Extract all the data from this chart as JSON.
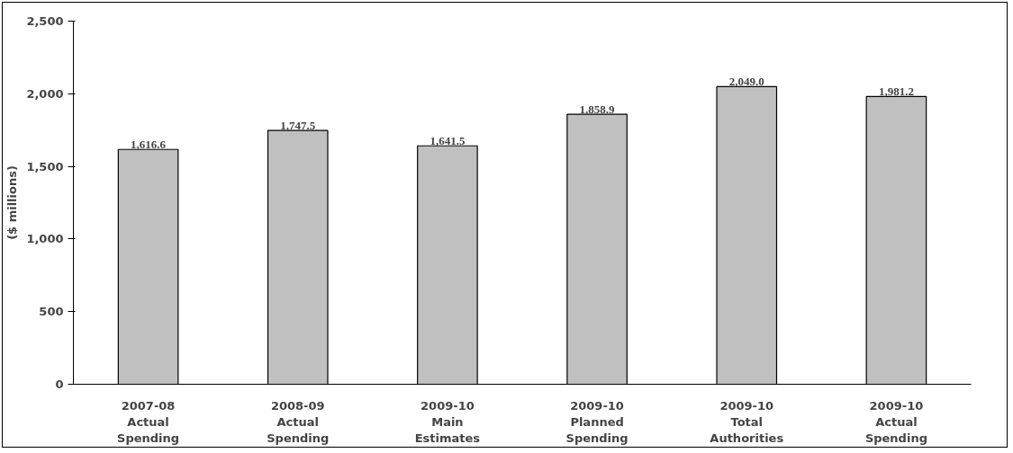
{
  "chart_data": {
    "type": "bar",
    "ylabel": "($ millions)",
    "categories": [
      "2007-08\nActual\nSpending",
      "2008-09\nActual\nSpending",
      "2009-10\nMain\nEstimates",
      "2009-10\nPlanned\nSpending",
      "2009-10\nTotal\nAuthorities",
      "2009-10\nActual\nSpending"
    ],
    "values": [
      1616.6,
      1747.5,
      1641.5,
      1858.9,
      2049.0,
      1981.2
    ],
    "value_labels": [
      "1,616.6",
      "1,747.5",
      "1,641.5",
      "1,858.9",
      "2,049.0",
      "1,981.2"
    ],
    "color": "#c0c0c0",
    "ylim": [
      0,
      2500
    ],
    "yticks": [
      0,
      500,
      {
        "value": 1000,
        "label": "1,000"
      },
      {
        "value": 1500,
        "label": "1,500"
      },
      {
        "value": 2000,
        "label": "2,000"
      },
      {
        "value": 2500,
        "label": "2,500"
      }
    ],
    "grid": false
  }
}
